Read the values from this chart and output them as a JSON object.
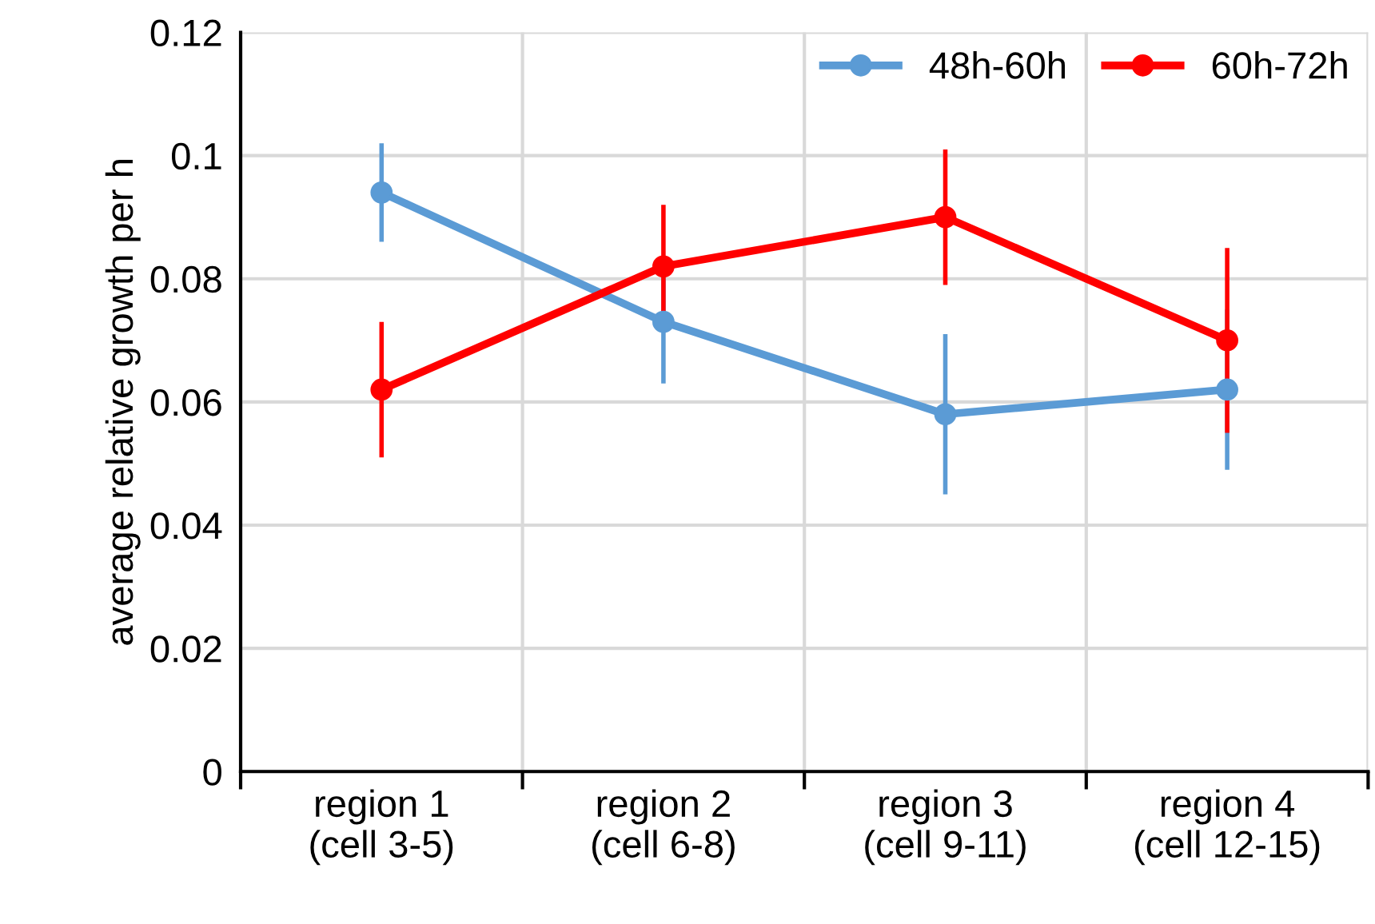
{
  "chart_data": {
    "type": "line",
    "ylabel": "average relative growth per h",
    "categories": [
      "region 1\n(cell 3-5)",
      "region 2\n(cell 6-8)",
      "region 3\n(cell 9-11)",
      "region 4\n(cell 12-15)"
    ],
    "series": [
      {
        "name": "48h-60h",
        "color": "#5b9bd5",
        "values": [
          0.094,
          0.073,
          0.058,
          0.062
        ],
        "errors": [
          0.008,
          0.01,
          0.013,
          0.013
        ]
      },
      {
        "name": "60h-72h",
        "color": "#ff0000",
        "values": [
          0.062,
          0.082,
          0.09,
          0.07
        ],
        "errors": [
          0.011,
          0.01,
          0.011,
          0.015
        ]
      }
    ],
    "ylim": [
      0,
      0.12
    ],
    "yticks": [
      0,
      0.02,
      0.04,
      0.06,
      0.08,
      0.1,
      0.12
    ],
    "grid": true,
    "legend": "top right",
    "marker": "circle",
    "line_style": "solid"
  }
}
